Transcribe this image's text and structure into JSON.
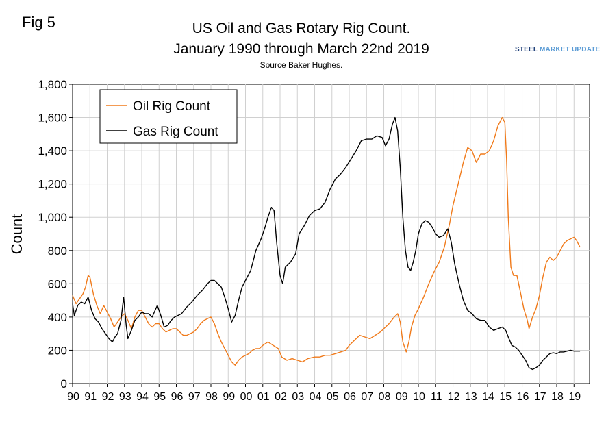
{
  "fig_label": "Fig 5",
  "title_line1": "US Oil and Gas Rotary Rig Count.",
  "title_line2": "January 1990 through March 22nd 2019",
  "source": "Source Baker Hughes.",
  "logo": {
    "part1": "STEEL",
    "part2": "MARKET UPDATE"
  },
  "colors": {
    "oil": "#f07a1a",
    "gas": "#000000",
    "grid": "#d0d0d0"
  },
  "chart_data": {
    "type": "line",
    "title": "US Oil and Gas Rotary Rig Count. January 1990 through March 22nd 2019",
    "xlabel": "",
    "ylabel": "Count",
    "xlim": [
      1990.0,
      2019.9
    ],
    "ylim": [
      0,
      1800
    ],
    "y_ticks": [
      0,
      200,
      400,
      600,
      800,
      1000,
      1200,
      1400,
      1600,
      1800
    ],
    "y_tick_labels": [
      "0",
      "200",
      "400",
      "600",
      "800",
      "1,000",
      "1,200",
      "1,400",
      "1,600",
      "1,800"
    ],
    "x_tick_labels": [
      "90",
      "91",
      "92",
      "93",
      "94",
      "95",
      "96",
      "97",
      "98",
      "99",
      "00",
      "01",
      "02",
      "03",
      "04",
      "05",
      "06",
      "07",
      "08",
      "09",
      "10",
      "11",
      "12",
      "13",
      "14",
      "15",
      "16",
      "17",
      "18",
      "19"
    ],
    "grid": true,
    "legend": "top-left",
    "series": [
      {
        "name": "Oil Rig Count",
        "color": "#f07a1a",
        "points": [
          [
            1990.0,
            530
          ],
          [
            1990.2,
            480
          ],
          [
            1990.4,
            510
          ],
          [
            1990.6,
            540
          ],
          [
            1990.75,
            580
          ],
          [
            1990.9,
            650
          ],
          [
            1991.0,
            640
          ],
          [
            1991.2,
            540
          ],
          [
            1991.4,
            470
          ],
          [
            1991.6,
            420
          ],
          [
            1991.8,
            470
          ],
          [
            1992.0,
            430
          ],
          [
            1992.2,
            390
          ],
          [
            1992.4,
            340
          ],
          [
            1992.6,
            370
          ],
          [
            1992.8,
            400
          ],
          [
            1993.0,
            420
          ],
          [
            1993.2,
            380
          ],
          [
            1993.4,
            330
          ],
          [
            1993.6,
            400
          ],
          [
            1993.8,
            440
          ],
          [
            1994.0,
            440
          ],
          [
            1994.2,
            400
          ],
          [
            1994.4,
            360
          ],
          [
            1994.6,
            340
          ],
          [
            1994.8,
            360
          ],
          [
            1995.0,
            360
          ],
          [
            1995.2,
            330
          ],
          [
            1995.4,
            310
          ],
          [
            1995.6,
            320
          ],
          [
            1995.8,
            330
          ],
          [
            1996.0,
            330
          ],
          [
            1996.2,
            310
          ],
          [
            1996.4,
            290
          ],
          [
            1996.6,
            290
          ],
          [
            1996.8,
            300
          ],
          [
            1997.0,
            310
          ],
          [
            1997.2,
            330
          ],
          [
            1997.4,
            360
          ],
          [
            1997.6,
            380
          ],
          [
            1997.8,
            390
          ],
          [
            1998.0,
            400
          ],
          [
            1998.2,
            360
          ],
          [
            1998.4,
            300
          ],
          [
            1998.6,
            250
          ],
          [
            1998.8,
            210
          ],
          [
            1999.0,
            170
          ],
          [
            1999.2,
            130
          ],
          [
            1999.4,
            110
          ],
          [
            1999.6,
            140
          ],
          [
            1999.8,
            160
          ],
          [
            2000.0,
            170
          ],
          [
            2000.2,
            180
          ],
          [
            2000.4,
            200
          ],
          [
            2000.6,
            210
          ],
          [
            2000.8,
            210
          ],
          [
            2001.0,
            230
          ],
          [
            2001.3,
            250
          ],
          [
            2001.6,
            230
          ],
          [
            2001.9,
            210
          ],
          [
            2002.1,
            160
          ],
          [
            2002.4,
            140
          ],
          [
            2002.7,
            150
          ],
          [
            2003.0,
            140
          ],
          [
            2003.3,
            130
          ],
          [
            2003.6,
            150
          ],
          [
            2004.0,
            160
          ],
          [
            2004.3,
            160
          ],
          [
            2004.6,
            170
          ],
          [
            2004.9,
            170
          ],
          [
            2005.2,
            180
          ],
          [
            2005.5,
            190
          ],
          [
            2005.8,
            200
          ],
          [
            2006.0,
            230
          ],
          [
            2006.3,
            260
          ],
          [
            2006.6,
            290
          ],
          [
            2006.9,
            280
          ],
          [
            2007.2,
            270
          ],
          [
            2007.5,
            290
          ],
          [
            2007.8,
            310
          ],
          [
            2008.0,
            330
          ],
          [
            2008.3,
            360
          ],
          [
            2008.6,
            400
          ],
          [
            2008.8,
            420
          ],
          [
            2008.95,
            370
          ],
          [
            2009.1,
            250
          ],
          [
            2009.3,
            190
          ],
          [
            2009.45,
            250
          ],
          [
            2009.6,
            340
          ],
          [
            2009.8,
            410
          ],
          [
            2010.0,
            450
          ],
          [
            2010.3,
            520
          ],
          [
            2010.6,
            600
          ],
          [
            2010.9,
            670
          ],
          [
            2011.2,
            730
          ],
          [
            2011.5,
            820
          ],
          [
            2011.8,
            960
          ],
          [
            2012.0,
            1070
          ],
          [
            2012.3,
            1200
          ],
          [
            2012.6,
            1330
          ],
          [
            2012.85,
            1420
          ],
          [
            2013.1,
            1400
          ],
          [
            2013.35,
            1330
          ],
          [
            2013.6,
            1380
          ],
          [
            2013.85,
            1380
          ],
          [
            2014.1,
            1400
          ],
          [
            2014.35,
            1460
          ],
          [
            2014.6,
            1550
          ],
          [
            2014.85,
            1600
          ],
          [
            2015.0,
            1570
          ],
          [
            2015.1,
            1350
          ],
          [
            2015.2,
            1000
          ],
          [
            2015.35,
            700
          ],
          [
            2015.5,
            650
          ],
          [
            2015.7,
            650
          ],
          [
            2015.9,
            550
          ],
          [
            2016.1,
            450
          ],
          [
            2016.3,
            380
          ],
          [
            2016.4,
            330
          ],
          [
            2016.6,
            400
          ],
          [
            2016.8,
            450
          ],
          [
            2017.0,
            530
          ],
          [
            2017.2,
            640
          ],
          [
            2017.4,
            730
          ],
          [
            2017.6,
            760
          ],
          [
            2017.8,
            740
          ],
          [
            2018.0,
            760
          ],
          [
            2018.2,
            800
          ],
          [
            2018.4,
            840
          ],
          [
            2018.6,
            860
          ],
          [
            2018.8,
            870
          ],
          [
            2019.0,
            880
          ],
          [
            2019.15,
            860
          ],
          [
            2019.25,
            840
          ],
          [
            2019.35,
            820
          ]
        ]
      },
      {
        "name": "Gas Rig Count",
        "color": "#000000",
        "points": [
          [
            1990.0,
            480
          ],
          [
            1990.1,
            410
          ],
          [
            1990.3,
            470
          ],
          [
            1990.5,
            490
          ],
          [
            1990.7,
            480
          ],
          [
            1990.9,
            520
          ],
          [
            1991.1,
            440
          ],
          [
            1991.3,
            390
          ],
          [
            1991.5,
            370
          ],
          [
            1991.7,
            330
          ],
          [
            1991.9,
            300
          ],
          [
            1992.1,
            270
          ],
          [
            1992.3,
            250
          ],
          [
            1992.45,
            280
          ],
          [
            1992.6,
            300
          ],
          [
            1992.8,
            380
          ],
          [
            1992.95,
            520
          ],
          [
            1993.1,
            350
          ],
          [
            1993.2,
            270
          ],
          [
            1993.4,
            320
          ],
          [
            1993.6,
            380
          ],
          [
            1993.8,
            400
          ],
          [
            1994.0,
            430
          ],
          [
            1994.2,
            420
          ],
          [
            1994.4,
            420
          ],
          [
            1994.6,
            400
          ],
          [
            1994.9,
            470
          ],
          [
            1995.1,
            410
          ],
          [
            1995.3,
            340
          ],
          [
            1995.5,
            350
          ],
          [
            1995.7,
            380
          ],
          [
            1995.9,
            400
          ],
          [
            1996.1,
            410
          ],
          [
            1996.3,
            420
          ],
          [
            1996.6,
            460
          ],
          [
            1996.9,
            490
          ],
          [
            1997.2,
            530
          ],
          [
            1997.5,
            560
          ],
          [
            1997.8,
            600
          ],
          [
            1998.0,
            620
          ],
          [
            1998.2,
            620
          ],
          [
            1998.4,
            600
          ],
          [
            1998.6,
            580
          ],
          [
            1998.8,
            520
          ],
          [
            1999.0,
            450
          ],
          [
            1999.2,
            370
          ],
          [
            1999.4,
            410
          ],
          [
            1999.6,
            500
          ],
          [
            1999.8,
            580
          ],
          [
            2000.0,
            620
          ],
          [
            2000.3,
            680
          ],
          [
            2000.6,
            800
          ],
          [
            2000.9,
            870
          ],
          [
            2001.1,
            930
          ],
          [
            2001.3,
            1000
          ],
          [
            2001.5,
            1060
          ],
          [
            2001.65,
            1040
          ],
          [
            2001.8,
            850
          ],
          [
            2002.0,
            650
          ],
          [
            2002.15,
            600
          ],
          [
            2002.3,
            700
          ],
          [
            2002.6,
            730
          ],
          [
            2002.9,
            780
          ],
          [
            2003.1,
            900
          ],
          [
            2003.4,
            950
          ],
          [
            2003.7,
            1010
          ],
          [
            2004.0,
            1040
          ],
          [
            2004.3,
            1050
          ],
          [
            2004.6,
            1090
          ],
          [
            2004.9,
            1170
          ],
          [
            2005.2,
            1230
          ],
          [
            2005.5,
            1260
          ],
          [
            2005.8,
            1300
          ],
          [
            2006.1,
            1350
          ],
          [
            2006.4,
            1400
          ],
          [
            2006.7,
            1460
          ],
          [
            2007.0,
            1470
          ],
          [
            2007.3,
            1470
          ],
          [
            2007.6,
            1490
          ],
          [
            2007.9,
            1480
          ],
          [
            2008.1,
            1430
          ],
          [
            2008.3,
            1470
          ],
          [
            2008.5,
            1560
          ],
          [
            2008.65,
            1600
          ],
          [
            2008.8,
            1520
          ],
          [
            2008.95,
            1300
          ],
          [
            2009.1,
            1000
          ],
          [
            2009.25,
            800
          ],
          [
            2009.4,
            700
          ],
          [
            2009.55,
            680
          ],
          [
            2009.7,
            730
          ],
          [
            2009.85,
            800
          ],
          [
            2010.0,
            900
          ],
          [
            2010.2,
            960
          ],
          [
            2010.4,
            980
          ],
          [
            2010.6,
            970
          ],
          [
            2010.8,
            940
          ],
          [
            2011.0,
            900
          ],
          [
            2011.2,
            880
          ],
          [
            2011.45,
            890
          ],
          [
            2011.7,
            930
          ],
          [
            2011.9,
            850
          ],
          [
            2012.1,
            720
          ],
          [
            2012.35,
            600
          ],
          [
            2012.6,
            500
          ],
          [
            2012.85,
            440
          ],
          [
            2013.1,
            420
          ],
          [
            2013.35,
            390
          ],
          [
            2013.6,
            380
          ],
          [
            2013.85,
            380
          ],
          [
            2014.1,
            340
          ],
          [
            2014.35,
            320
          ],
          [
            2014.6,
            330
          ],
          [
            2014.85,
            340
          ],
          [
            2015.05,
            320
          ],
          [
            2015.2,
            280
          ],
          [
            2015.4,
            230
          ],
          [
            2015.6,
            220
          ],
          [
            2015.8,
            200
          ],
          [
            2016.0,
            170
          ],
          [
            2016.2,
            140
          ],
          [
            2016.4,
            95
          ],
          [
            2016.6,
            85
          ],
          [
            2016.8,
            95
          ],
          [
            2017.0,
            110
          ],
          [
            2017.2,
            140
          ],
          [
            2017.4,
            160
          ],
          [
            2017.6,
            180
          ],
          [
            2017.8,
            185
          ],
          [
            2018.0,
            180
          ],
          [
            2018.2,
            190
          ],
          [
            2018.4,
            190
          ],
          [
            2018.6,
            195
          ],
          [
            2018.8,
            200
          ],
          [
            2019.0,
            195
          ],
          [
            2019.2,
            195
          ],
          [
            2019.35,
            195
          ]
        ]
      }
    ]
  }
}
